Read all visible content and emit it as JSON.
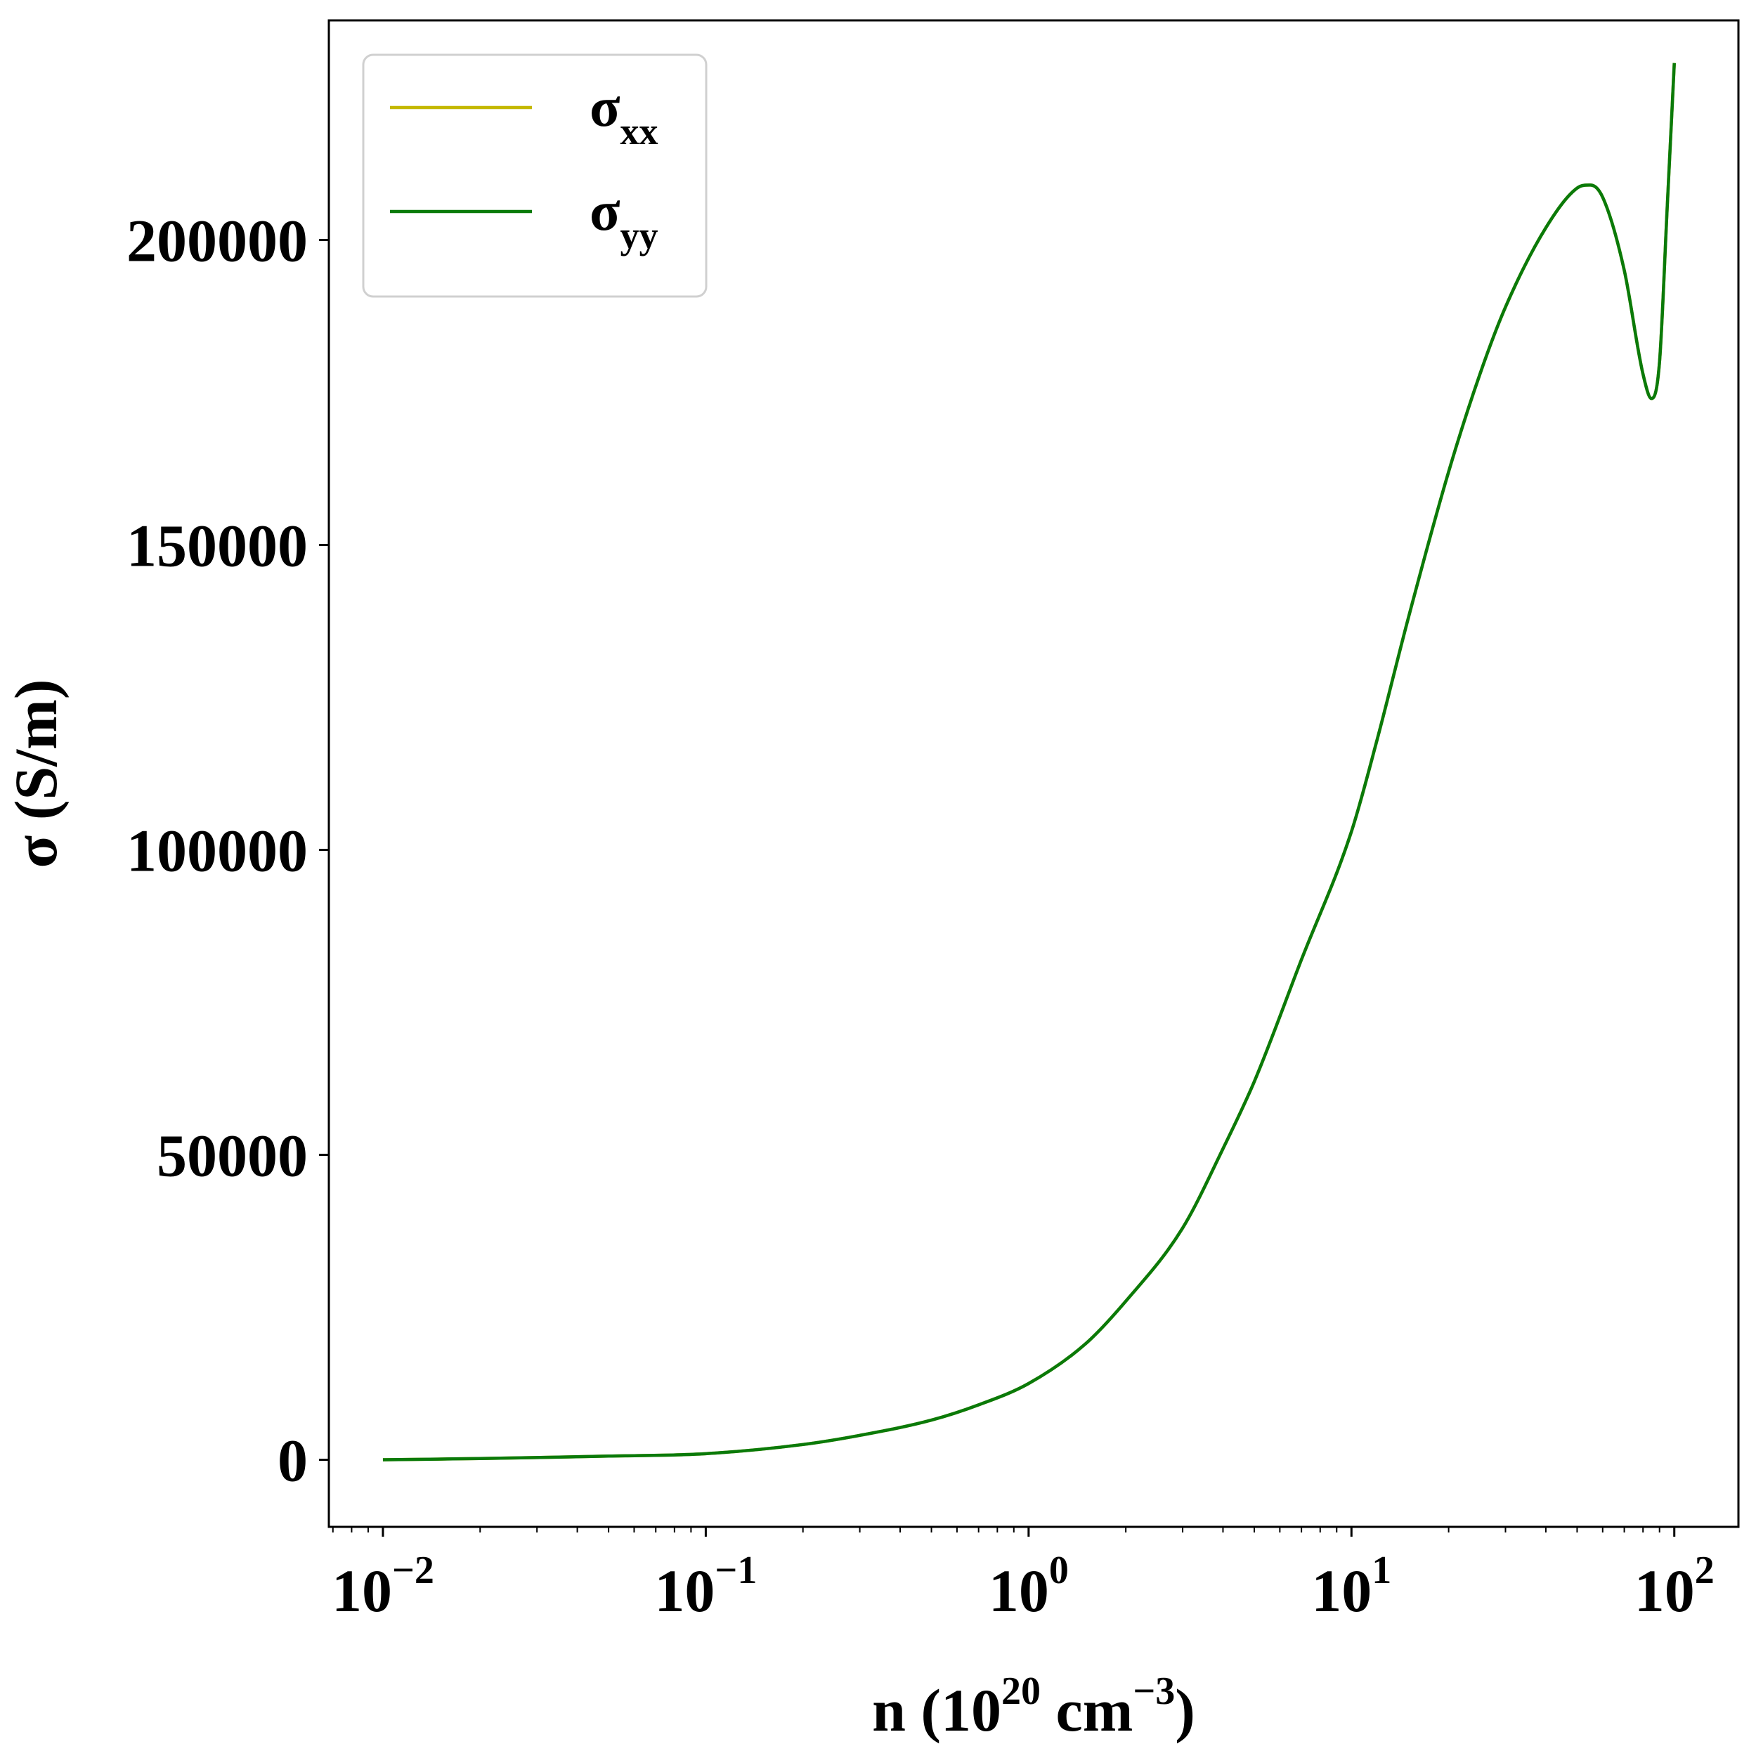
{
  "chart_data": {
    "type": "line",
    "xlabel": {
      "main": "n (10",
      "exp1": "20",
      "mid": " cm",
      "exp2": "−3",
      "end": ")"
    },
    "ylabel": "σ (S/m)",
    "x_scale": "log",
    "xlim": [
      0.0068,
      158
    ],
    "ylim": [
      -11000,
      236000
    ],
    "x_ticks": [
      {
        "value": 0.01,
        "base": "10",
        "exp": "−2"
      },
      {
        "value": 0.1,
        "base": "10",
        "exp": "−1"
      },
      {
        "value": 1,
        "base": "10",
        "exp": "0"
      },
      {
        "value": 10,
        "base": "10",
        "exp": "1"
      },
      {
        "value": 100,
        "base": "10",
        "exp": "2"
      }
    ],
    "y_ticks": [
      {
        "value": 0,
        "label": "0"
      },
      {
        "value": 50000,
        "label": "50000"
      },
      {
        "value": 100000,
        "label": "100000"
      },
      {
        "value": 150000,
        "label": "150000"
      },
      {
        "value": 200000,
        "label": "200000"
      }
    ],
    "grid": false,
    "legend": {
      "position": "top-left",
      "entries": [
        {
          "base": "σ",
          "sub": "xx"
        },
        {
          "base": "σ",
          "sub": "yy"
        }
      ]
    },
    "series": [
      {
        "name": "σxx",
        "color": "#c4b800",
        "x": [
          0.01,
          0.02,
          0.05,
          0.1,
          0.2,
          0.3,
          0.5,
          0.7,
          1.0,
          1.5,
          2.0,
          3.0,
          4.0,
          5.0,
          7.0,
          10.0,
          12.0,
          15.0,
          20.0,
          25.0,
          30.0,
          40.0,
          50.0,
          55.0,
          60.0,
          70.0,
          80.0,
          85.0,
          90.0,
          95.0,
          100.0
        ],
        "y": [
          0,
          200,
          600,
          1000,
          2500,
          4000,
          6500,
          9000,
          12500,
          19000,
          26000,
          38000,
          51000,
          62000,
          82000,
          103000,
          118000,
          138000,
          162000,
          178000,
          189000,
          202000,
          208500,
          209000,
          207000,
          195000,
          178000,
          174000,
          180000,
          205000,
          229000
        ]
      },
      {
        "name": "σyy",
        "color": "#0a7a0a",
        "x": [
          0.01,
          0.02,
          0.05,
          0.1,
          0.2,
          0.3,
          0.5,
          0.7,
          1.0,
          1.5,
          2.0,
          3.0,
          4.0,
          5.0,
          7.0,
          10.0,
          12.0,
          15.0,
          20.0,
          25.0,
          30.0,
          40.0,
          50.0,
          55.0,
          60.0,
          70.0,
          80.0,
          85.0,
          90.0,
          95.0,
          100.0
        ],
        "y": [
          0,
          200,
          600,
          1000,
          2500,
          4000,
          6500,
          9000,
          12500,
          19000,
          26000,
          38000,
          51000,
          62000,
          82000,
          103000,
          118000,
          138000,
          162000,
          178000,
          189000,
          202000,
          208500,
          209000,
          207000,
          195000,
          178000,
          174000,
          180000,
          205000,
          229000
        ]
      }
    ]
  }
}
